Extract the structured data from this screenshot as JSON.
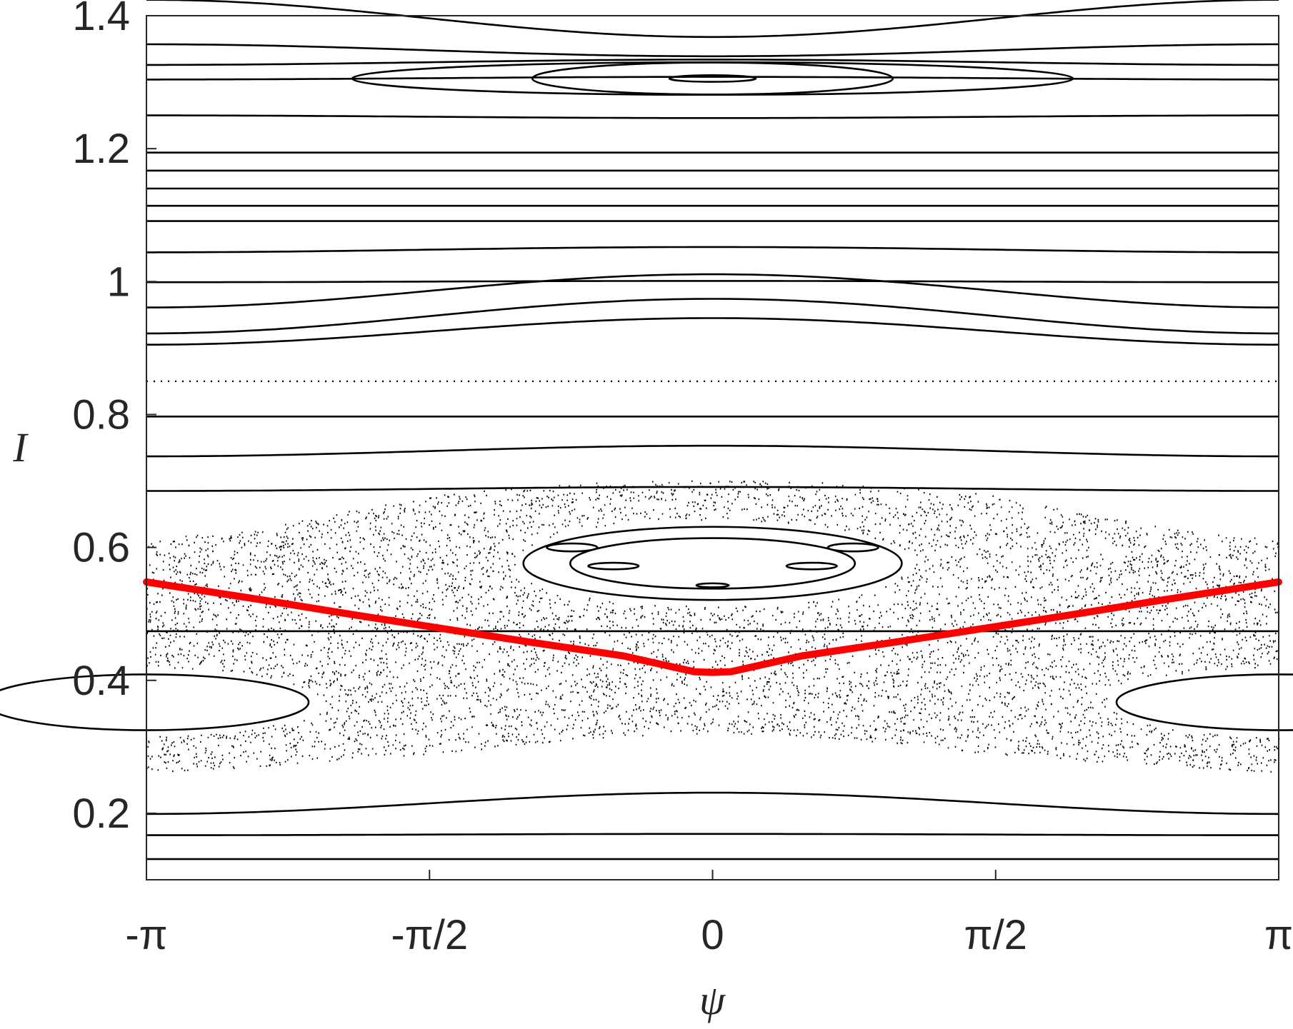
{
  "chart_data": {
    "type": "scatter",
    "title": "",
    "xlabel": "ψ",
    "ylabel": "I",
    "xlim": [
      -3.14159,
      3.14159
    ],
    "ylim": [
      0.1,
      1.4
    ],
    "grid": false,
    "x_ticks": [
      {
        "value": -3.14159,
        "label": "-π"
      },
      {
        "value": -1.5708,
        "label": "-π/2"
      },
      {
        "value": 0,
        "label": "0"
      },
      {
        "value": 1.5708,
        "label": "π/2"
      },
      {
        "value": 3.14159,
        "label": "π"
      }
    ],
    "y_ticks": [
      {
        "value": 0.2,
        "label": "0.2"
      },
      {
        "value": 0.4,
        "label": "0.4"
      },
      {
        "value": 0.6,
        "label": "0.6"
      },
      {
        "value": 0.8,
        "label": "0.8"
      },
      {
        "value": 1.0,
        "label": "1"
      },
      {
        "value": 1.2,
        "label": "1.2"
      },
      {
        "value": 1.4,
        "label": "1.4"
      }
    ],
    "colors": {
      "orbits": "#000000",
      "highlight": "#ff0000",
      "axes": "#262626"
    },
    "open_orbits": [
      {
        "base": 0.131,
        "amp": 0.0,
        "style": "solid"
      },
      {
        "base": 0.168,
        "amp": 0.001,
        "style": "solid"
      },
      {
        "base": 0.215,
        "amp": 0.016,
        "style": "solid"
      },
      {
        "base": 0.474,
        "amp": 0.0,
        "style": "solid"
      },
      {
        "base": 0.688,
        "amp": 0.003,
        "style": "solid"
      },
      {
        "base": 0.745,
        "amp": 0.008,
        "style": "solid"
      },
      {
        "base": 0.797,
        "amp": 0.0,
        "style": "solid"
      },
      {
        "base": 0.85,
        "amp": 0.0,
        "style": "dotted"
      },
      {
        "base": 0.925,
        "amp": 0.02,
        "style": "solid"
      },
      {
        "base": 0.948,
        "amp": 0.026,
        "style": "solid"
      },
      {
        "base": 0.986,
        "amp": 0.025,
        "style": "solid"
      },
      {
        "base": 1.0,
        "amp": 0.001,
        "style": "solid"
      },
      {
        "base": 1.048,
        "amp": 0.004,
        "style": "solid"
      },
      {
        "base": 1.091,
        "amp": 0.0,
        "style": "solid"
      },
      {
        "base": 1.114,
        "amp": 0.0,
        "style": "solid"
      },
      {
        "base": 1.14,
        "amp": 0.0,
        "style": "solid"
      },
      {
        "base": 1.167,
        "amp": 0.0,
        "style": "solid"
      },
      {
        "base": 1.194,
        "amp": 0.0,
        "style": "solid"
      },
      {
        "base": 1.248,
        "amp": -0.002,
        "style": "solid"
      },
      {
        "base": 1.306,
        "amp": 0.002,
        "style": "solid"
      },
      {
        "base": 1.33,
        "amp": 0.004,
        "style": "solid"
      },
      {
        "base": 1.348,
        "amp": -0.009,
        "style": "solid"
      },
      {
        "base": 1.396,
        "amp": -0.028,
        "style": "solid"
      }
    ],
    "islands": [
      {
        "cx": 0,
        "cy": 1.3055,
        "rx": 2.0,
        "ry": 0.0245
      },
      {
        "cx": 0,
        "cy": 1.3055,
        "rx": 1.0,
        "ry": 0.024
      },
      {
        "cx": 0,
        "cy": 1.3055,
        "rx": 0.24,
        "ry": 0.005
      },
      {
        "cx": 0,
        "cy": 0.576,
        "rx": 1.05,
        "ry": 0.055
      },
      {
        "cx": 0,
        "cy": 0.576,
        "rx": 0.79,
        "ry": 0.038
      },
      {
        "cx": 0,
        "cy": 0.543,
        "rx": 0.09,
        "ry": 0.003
      },
      {
        "cx": -0.55,
        "cy": 0.572,
        "rx": 0.14,
        "ry": 0.005
      },
      {
        "cx": 0.55,
        "cy": 0.572,
        "rx": 0.14,
        "ry": 0.005
      },
      {
        "cx": -0.78,
        "cy": 0.6,
        "rx": 0.14,
        "ry": 0.006
      },
      {
        "cx": 0.78,
        "cy": 0.6,
        "rx": 0.14,
        "ry": 0.006
      },
      {
        "cx": -3.14159,
        "cy": 0.367,
        "rx": 0.9,
        "ry": 0.042
      },
      {
        "cx": 3.14159,
        "cy": 0.367,
        "rx": 0.9,
        "ry": 0.042
      }
    ],
    "chaotic_layer": {
      "upper_edge": {
        "psi": [
          -3.14159,
          -2.5,
          -1.5,
          -0.5,
          0,
          0.5,
          1.5,
          2.5,
          3.14159
        ],
        "I": [
          0.61,
          0.63,
          0.68,
          0.7,
          0.7,
          0.7,
          0.68,
          0.63,
          0.61
        ]
      },
      "lower_edge": {
        "psi": [
          -3.14159,
          -2.5,
          -1.5,
          -0.8,
          0,
          0.8,
          1.5,
          2.5,
          3.14159
        ],
        "I": [
          0.26,
          0.27,
          0.29,
          0.31,
          0.32,
          0.31,
          0.29,
          0.27,
          0.26
        ]
      }
    },
    "series": [
      {
        "psi": [
          -3.14159,
          -2.5,
          -2.0,
          -1.5,
          -1.0,
          -0.5,
          -0.1,
          0,
          0.1,
          0.5,
          1.0,
          1.5,
          2.0,
          2.5,
          3.14159
        ],
        "I": [
          0.548,
          0.521,
          0.499,
          0.478,
          0.457,
          0.437,
          0.413,
          0.412,
          0.413,
          0.437,
          0.457,
          0.478,
          0.499,
          0.521,
          0.548
        ]
      }
    ]
  }
}
